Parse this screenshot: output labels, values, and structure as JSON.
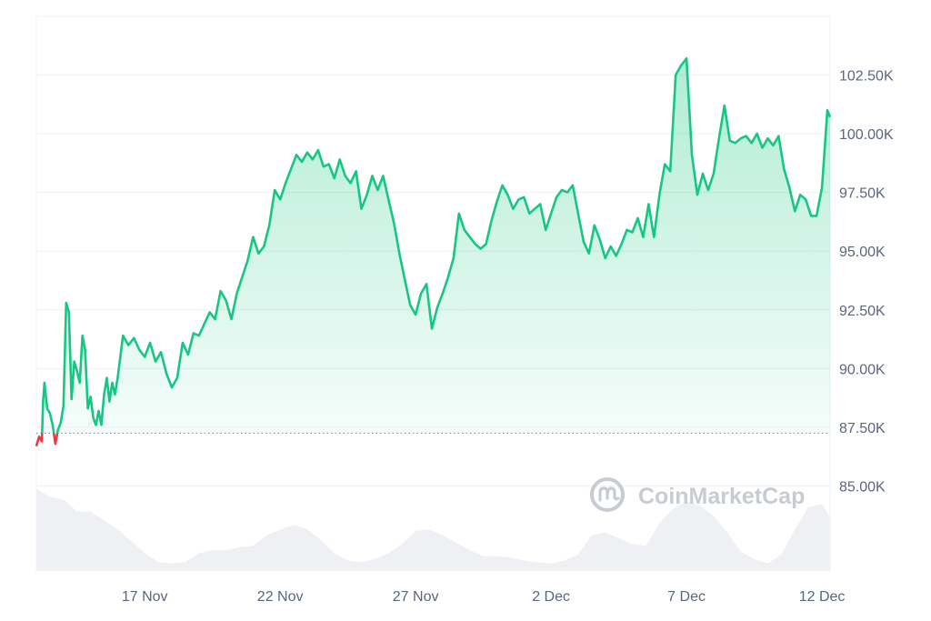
{
  "chart_data": {
    "type": "area",
    "x_start": "13 Nov",
    "x_end": "12 Dec",
    "x_ticks": [
      {
        "label": "17 Nov",
        "day": 4
      },
      {
        "label": "22 Nov",
        "day": 9
      },
      {
        "label": "27 Nov",
        "day": 14
      },
      {
        "label": "2 Dec",
        "day": 19
      },
      {
        "label": "7 Dec",
        "day": 24
      },
      {
        "label": "12 Dec",
        "day": 29
      }
    ],
    "y_ticks": [
      {
        "label": "102.50K",
        "value": 102500
      },
      {
        "label": "100.00K",
        "value": 100000
      },
      {
        "label": "97.50K",
        "value": 97500
      },
      {
        "label": "95.00K",
        "value": 95000
      },
      {
        "label": "92.50K",
        "value": 92500
      },
      {
        "label": "90.00K",
        "value": 90000
      },
      {
        "label": "87.50K",
        "value": 87500
      },
      {
        "label": "85.00K",
        "value": 85000
      }
    ],
    "ylim": [
      82700,
      105000
    ],
    "xlim": [
      0,
      29.3
    ],
    "baseline": 87250,
    "grid": true,
    "series": [
      {
        "values": [
          [
            0.0,
            86700
          ],
          [
            0.1,
            87100
          ],
          [
            0.2,
            86900
          ],
          [
            0.25,
            88600
          ],
          [
            0.3,
            89400
          ],
          [
            0.4,
            88300
          ],
          [
            0.5,
            88100
          ],
          [
            0.6,
            87600
          ],
          [
            0.7,
            86800
          ],
          [
            0.8,
            87400
          ],
          [
            0.9,
            87700
          ],
          [
            1.0,
            88400
          ],
          [
            1.1,
            92800
          ],
          [
            1.2,
            92400
          ],
          [
            1.3,
            88700
          ],
          [
            1.4,
            90300
          ],
          [
            1.5,
            89900
          ],
          [
            1.6,
            89400
          ],
          [
            1.7,
            91400
          ],
          [
            1.8,
            90800
          ],
          [
            1.9,
            88300
          ],
          [
            2.0,
            88800
          ],
          [
            2.1,
            87900
          ],
          [
            2.2,
            87600
          ],
          [
            2.3,
            88200
          ],
          [
            2.4,
            87600
          ],
          [
            2.5,
            88900
          ],
          [
            2.6,
            89600
          ],
          [
            2.7,
            88600
          ],
          [
            2.8,
            89400
          ],
          [
            2.9,
            88900
          ],
          [
            3.0,
            89600
          ],
          [
            3.2,
            91400
          ],
          [
            3.4,
            91000
          ],
          [
            3.6,
            91300
          ],
          [
            3.8,
            90800
          ],
          [
            4.0,
            90500
          ],
          [
            4.2,
            91100
          ],
          [
            4.4,
            90300
          ],
          [
            4.6,
            90700
          ],
          [
            4.8,
            89800
          ],
          [
            5.0,
            89200
          ],
          [
            5.2,
            89600
          ],
          [
            5.4,
            91100
          ],
          [
            5.6,
            90600
          ],
          [
            5.8,
            91500
          ],
          [
            6.0,
            91400
          ],
          [
            6.2,
            91900
          ],
          [
            6.4,
            92400
          ],
          [
            6.6,
            92100
          ],
          [
            6.8,
            93300
          ],
          [
            7.0,
            92900
          ],
          [
            7.2,
            92100
          ],
          [
            7.4,
            93200
          ],
          [
            7.6,
            93900
          ],
          [
            7.8,
            94600
          ],
          [
            8.0,
            95600
          ],
          [
            8.2,
            94900
          ],
          [
            8.4,
            95200
          ],
          [
            8.6,
            96100
          ],
          [
            8.8,
            97600
          ],
          [
            9.0,
            97200
          ],
          [
            9.2,
            97900
          ],
          [
            9.4,
            98500
          ],
          [
            9.6,
            99100
          ],
          [
            9.8,
            98800
          ],
          [
            10.0,
            99200
          ],
          [
            10.2,
            98900
          ],
          [
            10.4,
            99300
          ],
          [
            10.6,
            98600
          ],
          [
            10.8,
            98700
          ],
          [
            11.0,
            98100
          ],
          [
            11.2,
            98900
          ],
          [
            11.4,
            98200
          ],
          [
            11.6,
            97900
          ],
          [
            11.8,
            98400
          ],
          [
            12.0,
            96800
          ],
          [
            12.2,
            97400
          ],
          [
            12.4,
            98200
          ],
          [
            12.6,
            97600
          ],
          [
            12.8,
            98200
          ],
          [
            13.0,
            97200
          ],
          [
            13.2,
            96200
          ],
          [
            13.4,
            94900
          ],
          [
            13.6,
            93800
          ],
          [
            13.8,
            92700
          ],
          [
            14.0,
            92300
          ],
          [
            14.2,
            93200
          ],
          [
            14.4,
            93600
          ],
          [
            14.6,
            91700
          ],
          [
            14.8,
            92600
          ],
          [
            15.0,
            93200
          ],
          [
            15.2,
            93900
          ],
          [
            15.4,
            94700
          ],
          [
            15.6,
            96600
          ],
          [
            15.8,
            95900
          ],
          [
            16.0,
            95600
          ],
          [
            16.2,
            95300
          ],
          [
            16.4,
            95100
          ],
          [
            16.6,
            95300
          ],
          [
            16.8,
            96300
          ],
          [
            17.0,
            97100
          ],
          [
            17.2,
            97800
          ],
          [
            17.4,
            97400
          ],
          [
            17.6,
            96800
          ],
          [
            17.8,
            97200
          ],
          [
            18.0,
            97300
          ],
          [
            18.2,
            96600
          ],
          [
            18.4,
            96800
          ],
          [
            18.6,
            97000
          ],
          [
            18.8,
            95900
          ],
          [
            19.0,
            96600
          ],
          [
            19.2,
            97300
          ],
          [
            19.4,
            97600
          ],
          [
            19.6,
            97500
          ],
          [
            19.8,
            97800
          ],
          [
            20.0,
            96600
          ],
          [
            20.2,
            95400
          ],
          [
            20.4,
            94900
          ],
          [
            20.6,
            96100
          ],
          [
            20.8,
            95500
          ],
          [
            21.0,
            94700
          ],
          [
            21.2,
            95200
          ],
          [
            21.4,
            94800
          ],
          [
            21.6,
            95300
          ],
          [
            21.8,
            95900
          ],
          [
            22.0,
            95800
          ],
          [
            22.2,
            96400
          ],
          [
            22.4,
            95600
          ],
          [
            22.6,
            97000
          ],
          [
            22.8,
            95600
          ],
          [
            23.0,
            97400
          ],
          [
            23.2,
            98700
          ],
          [
            23.4,
            98400
          ],
          [
            23.6,
            102500
          ],
          [
            23.8,
            102900
          ],
          [
            24.0,
            103200
          ],
          [
            24.2,
            99100
          ],
          [
            24.4,
            97400
          ],
          [
            24.6,
            98300
          ],
          [
            24.8,
            97600
          ],
          [
            25.0,
            98300
          ],
          [
            25.2,
            99800
          ],
          [
            25.4,
            101200
          ],
          [
            25.6,
            99700
          ],
          [
            25.8,
            99600
          ],
          [
            26.0,
            99800
          ],
          [
            26.2,
            99900
          ],
          [
            26.4,
            99600
          ],
          [
            26.6,
            100000
          ],
          [
            26.8,
            99400
          ],
          [
            27.0,
            99800
          ],
          [
            27.2,
            99500
          ],
          [
            27.4,
            99900
          ],
          [
            27.6,
            98500
          ],
          [
            27.8,
            97700
          ],
          [
            28.0,
            96700
          ],
          [
            28.2,
            97400
          ],
          [
            28.4,
            97200
          ],
          [
            28.6,
            96500
          ],
          [
            28.8,
            96500
          ],
          [
            29.0,
            97700
          ],
          [
            29.2,
            101000
          ],
          [
            29.3,
            100700
          ]
        ]
      }
    ],
    "volume": [
      [
        0.0,
        0.55
      ],
      [
        0.5,
        0.5
      ],
      [
        1.0,
        0.48
      ],
      [
        1.5,
        0.4
      ],
      [
        2.0,
        0.4
      ],
      [
        2.5,
        0.34
      ],
      [
        3.0,
        0.28
      ],
      [
        3.5,
        0.2
      ],
      [
        4.0,
        0.12
      ],
      [
        4.5,
        0.06
      ],
      [
        5.0,
        0.05
      ],
      [
        5.5,
        0.06
      ],
      [
        6.0,
        0.12
      ],
      [
        6.5,
        0.14
      ],
      [
        7.0,
        0.14
      ],
      [
        7.5,
        0.16
      ],
      [
        8.0,
        0.17
      ],
      [
        8.5,
        0.24
      ],
      [
        9.0,
        0.28
      ],
      [
        9.5,
        0.31
      ],
      [
        10.0,
        0.28
      ],
      [
        10.5,
        0.21
      ],
      [
        11.0,
        0.12
      ],
      [
        11.5,
        0.07
      ],
      [
        12.0,
        0.06
      ],
      [
        12.5,
        0.08
      ],
      [
        13.0,
        0.12
      ],
      [
        13.5,
        0.18
      ],
      [
        14.0,
        0.27
      ],
      [
        14.5,
        0.28
      ],
      [
        15.0,
        0.24
      ],
      [
        15.5,
        0.19
      ],
      [
        16.0,
        0.14
      ],
      [
        16.5,
        0.1
      ],
      [
        17.0,
        0.1
      ],
      [
        17.5,
        0.09
      ],
      [
        18.0,
        0.07
      ],
      [
        18.5,
        0.06
      ],
      [
        19.0,
        0.05
      ],
      [
        19.5,
        0.07
      ],
      [
        20.0,
        0.11
      ],
      [
        20.5,
        0.24
      ],
      [
        21.0,
        0.26
      ],
      [
        21.5,
        0.22
      ],
      [
        22.0,
        0.18
      ],
      [
        22.5,
        0.17
      ],
      [
        23.0,
        0.32
      ],
      [
        23.5,
        0.42
      ],
      [
        24.0,
        0.47
      ],
      [
        24.5,
        0.44
      ],
      [
        25.0,
        0.37
      ],
      [
        25.5,
        0.26
      ],
      [
        26.0,
        0.13
      ],
      [
        26.5,
        0.08
      ],
      [
        27.0,
        0.05
      ],
      [
        27.5,
        0.11
      ],
      [
        28.0,
        0.28
      ],
      [
        28.5,
        0.43
      ],
      [
        29.0,
        0.45
      ],
      [
        29.3,
        0.36
      ]
    ],
    "colors": {
      "line_up": "#16c784",
      "line_down": "#ea3943",
      "fill_top": "#16c784",
      "grid": "#eef0f3",
      "baseline": "#858ca2",
      "volume": "#eef0f4",
      "tick_text": "#58667e",
      "watermark": "#c7ccd3"
    }
  },
  "watermark": {
    "text": "CoinMarketCap",
    "icon": "coinmarketcap-logo-icon"
  }
}
